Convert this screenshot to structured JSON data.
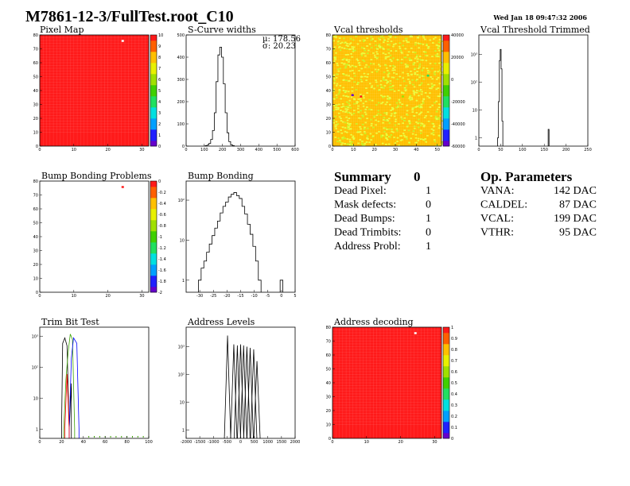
{
  "header": {
    "title": "M7861-12-3/FullTest.root_C10",
    "timestamp": "Wed Jan 18 09:47:32 2006"
  },
  "colors": {
    "map_red": "#ff1a1a",
    "map_green": "#b2f21b",
    "map_yellow": "#eaff3c",
    "frame": "#000000"
  },
  "summary": {
    "title": "Summary",
    "count": "0",
    "rows": [
      {
        "label": "Dead Pixel:",
        "value": "1"
      },
      {
        "label": "Mask defects:",
        "value": "0"
      },
      {
        "label": "Dead Bumps:",
        "value": "1"
      },
      {
        "label": "Dead Trimbits:",
        "value": "0"
      },
      {
        "label": "Address Probl:",
        "value": "1"
      }
    ]
  },
  "op_params": {
    "title": "Op. Parameters",
    "rows": [
      {
        "label": "VANA:",
        "value": "142 DAC"
      },
      {
        "label": "CALDEL:",
        "value": "87 DAC"
      },
      {
        "label": "VCAL:",
        "value": "199 DAC"
      },
      {
        "label": "VTHR:",
        "value": "95 DAC"
      }
    ]
  },
  "chart_data": [
    {
      "id": "pixel_map",
      "type": "heatmap",
      "title": "Pixel Map",
      "xlim": [
        0,
        32
      ],
      "ylim": [
        0,
        80
      ],
      "x_ticks": [
        0,
        10,
        20,
        30
      ],
      "y_ticks": [
        0,
        10,
        20,
        30,
        40,
        50,
        60,
        70,
        80
      ],
      "z_ticks": [
        0,
        1,
        2,
        3,
        4,
        5,
        6,
        7,
        8,
        9,
        10
      ],
      "zlim": [
        0,
        10
      ],
      "fill_value": 10,
      "anomalies": [
        {
          "x": 24,
          "y": 75,
          "z": 0
        }
      ]
    },
    {
      "id": "scurve_widths",
      "type": "bar",
      "title": "S-Curve widths",
      "xlim": [
        0,
        600
      ],
      "ylim": [
        0,
        500
      ],
      "x_ticks": [
        0,
        100,
        200,
        300,
        400,
        500,
        600
      ],
      "y_ticks": [
        0,
        100,
        200,
        300,
        400,
        500
      ],
      "stats": [
        "µ: 178.56",
        "σ: 20.23"
      ],
      "bins": [
        [
          110,
          2
        ],
        [
          120,
          5
        ],
        [
          130,
          12
        ],
        [
          140,
          30
        ],
        [
          150,
          70
        ],
        [
          160,
          150
        ],
        [
          170,
          290
        ],
        [
          180,
          410
        ],
        [
          190,
          445
        ],
        [
          200,
          400
        ],
        [
          210,
          280
        ],
        [
          220,
          150
        ],
        [
          230,
          60
        ],
        [
          240,
          20
        ],
        [
          250,
          6
        ],
        [
          260,
          2
        ]
      ]
    },
    {
      "id": "vcal_thresholds",
      "type": "heatmap",
      "title": "Vcal thresholds",
      "xlim": [
        0,
        52
      ],
      "ylim": [
        0,
        80
      ],
      "x_ticks": [
        0,
        10,
        20,
        30,
        40,
        50
      ],
      "y_ticks": [
        0,
        10,
        20,
        30,
        40,
        50,
        60,
        70,
        80
      ],
      "z_ticks": [
        40000,
        20000,
        0,
        -20000,
        -40000,
        -60000
      ],
      "zlim": [
        -60000,
        40000
      ],
      "fill_value": 20000,
      "anomalies": [
        {
          "x": 9,
          "y": 36,
          "z": -60000
        },
        {
          "x": 13,
          "y": 35,
          "z": 40000
        },
        {
          "x": 45,
          "y": 50,
          "z": -20000
        },
        {
          "x": 33,
          "y": 35,
          "z": 0
        }
      ]
    },
    {
      "id": "vcal_trimmed",
      "type": "bar",
      "title": "Vcal Threshold Trimmed",
      "log_y": true,
      "xlim": [
        0,
        250
      ],
      "ylim": [
        0.5,
        5000
      ],
      "x_ticks": [
        0,
        50,
        100,
        150,
        200,
        250
      ],
      "y_ticks_labels": [
        "1",
        "10",
        "10²",
        "10³"
      ],
      "bins": [
        [
          44,
          1
        ],
        [
          46,
          20
        ],
        [
          48,
          600
        ],
        [
          50,
          1500
        ],
        [
          52,
          300
        ],
        [
          54,
          4
        ],
        [
          160,
          2
        ]
      ]
    },
    {
      "id": "bump_problems",
      "type": "heatmap",
      "title": "Bump Bonding Problems",
      "xlim": [
        0,
        32
      ],
      "ylim": [
        0,
        80
      ],
      "x_ticks": [
        0,
        10,
        20,
        30
      ],
      "y_ticks": [
        0,
        10,
        20,
        30,
        40,
        50,
        60,
        70,
        80
      ],
      "z_ticks": [
        0,
        -0.2,
        -0.4,
        -0.6,
        -0.8,
        -1,
        -1.2,
        -1.4,
        -1.6,
        -1.8,
        -2
      ],
      "zlim": [
        -2,
        0
      ],
      "fill_value": null,
      "anomalies": [
        {
          "x": 24,
          "y": 75,
          "z": 0
        }
      ]
    },
    {
      "id": "bump_bonding",
      "type": "bar",
      "title": "Bump Bonding",
      "log_y": true,
      "xlim": [
        -35,
        5
      ],
      "ylim": [
        0.5,
        300
      ],
      "x_ticks": [
        -30,
        -25,
        -20,
        -15,
        -10,
        -5,
        0,
        5
      ],
      "y_ticks_labels": [
        "1",
        "10",
        "10²"
      ],
      "bins": [
        [
          -30,
          1
        ],
        [
          -29,
          2
        ],
        [
          -28,
          3
        ],
        [
          -27,
          5
        ],
        [
          -26,
          8
        ],
        [
          -25,
          13
        ],
        [
          -24,
          20
        ],
        [
          -23,
          30
        ],
        [
          -22,
          48
        ],
        [
          -21,
          70
        ],
        [
          -20,
          90
        ],
        [
          -19,
          120
        ],
        [
          -18,
          140
        ],
        [
          -17,
          155
        ],
        [
          -16,
          130
        ],
        [
          -15,
          110
        ],
        [
          -14,
          70
        ],
        [
          -13,
          45
        ],
        [
          -12,
          25
        ],
        [
          -11,
          14
        ],
        [
          -10,
          7
        ],
        [
          -9,
          3
        ],
        [
          -8,
          1
        ],
        [
          0,
          1
        ]
      ]
    },
    {
      "id": "trim_bit_test",
      "type": "line",
      "title": "Trim Bit Test",
      "log_y": true,
      "xlim": [
        0,
        100
      ],
      "ylim": [
        0.5,
        2000
      ],
      "x_ticks": [
        0,
        20,
        40,
        60,
        80,
        100
      ],
      "y_ticks_labels": [
        "1",
        "10",
        "10²",
        "10³"
      ],
      "series": [
        {
          "name": "black",
          "color": "#000000",
          "peaks": [
            [
              20,
              1
            ],
            [
              21,
              600
            ],
            [
              23,
              900
            ],
            [
              25,
              500
            ],
            [
              27,
              1
            ],
            [
              29,
              30
            ]
          ]
        },
        {
          "name": "green",
          "color": "#3aa000",
          "peaks": [
            [
              22,
              1
            ],
            [
              24,
              40
            ],
            [
              26,
              300
            ],
            [
              28,
              1200
            ],
            [
              30,
              800
            ],
            [
              32,
              1
            ]
          ]
        },
        {
          "name": "blue",
          "color": "#0000ff",
          "peaks": [
            [
              27,
              1
            ],
            [
              29,
              200
            ],
            [
              31,
              900
            ],
            [
              34,
              600
            ],
            [
              36,
              1
            ]
          ]
        },
        {
          "name": "red",
          "color": "#ff0000",
          "peaks": [
            [
              23,
              1
            ],
            [
              25,
              60
            ],
            [
              27,
              1
            ]
          ]
        }
      ]
    },
    {
      "id": "address_levels",
      "type": "bar",
      "title": "Address Levels",
      "log_y": true,
      "xlim": [
        -2000,
        2000
      ],
      "ylim": [
        0.5,
        5000
      ],
      "x_ticks": [
        -2000,
        -1500,
        -1000,
        -500,
        0,
        500,
        1000,
        1500,
        2000
      ],
      "x_tick_labels": [
        "-2000",
        "-1500",
        "-1000",
        "-500",
        "0",
        "500",
        "1000",
        "1500",
        "2000"
      ],
      "y_ticks_labels": [
        "1",
        "10",
        "10²",
        "10³"
      ],
      "peaks": [
        [
          -480,
          2500
        ],
        [
          -250,
          1200
        ],
        [
          -120,
          1100
        ],
        [
          0,
          1200
        ],
        [
          110,
          1100
        ],
        [
          230,
          1000
        ],
        [
          350,
          900
        ],
        [
          480,
          800
        ],
        [
          600,
          300
        ]
      ]
    },
    {
      "id": "address_decoding",
      "type": "heatmap",
      "title": "Address decoding",
      "xlim": [
        0,
        32
      ],
      "ylim": [
        0,
        80
      ],
      "x_ticks": [
        0,
        10,
        20,
        30
      ],
      "y_ticks": [
        0,
        10,
        20,
        30,
        40,
        50,
        60,
        70,
        80
      ],
      "z_ticks": [
        0,
        0.1,
        0.2,
        0.3,
        0.4,
        0.5,
        0.6,
        0.7,
        0.8,
        0.9,
        1
      ],
      "zlim": [
        0,
        1
      ],
      "fill_value": 1,
      "anomalies": [
        {
          "x": 24,
          "y": 75,
          "z": 0
        }
      ]
    }
  ]
}
